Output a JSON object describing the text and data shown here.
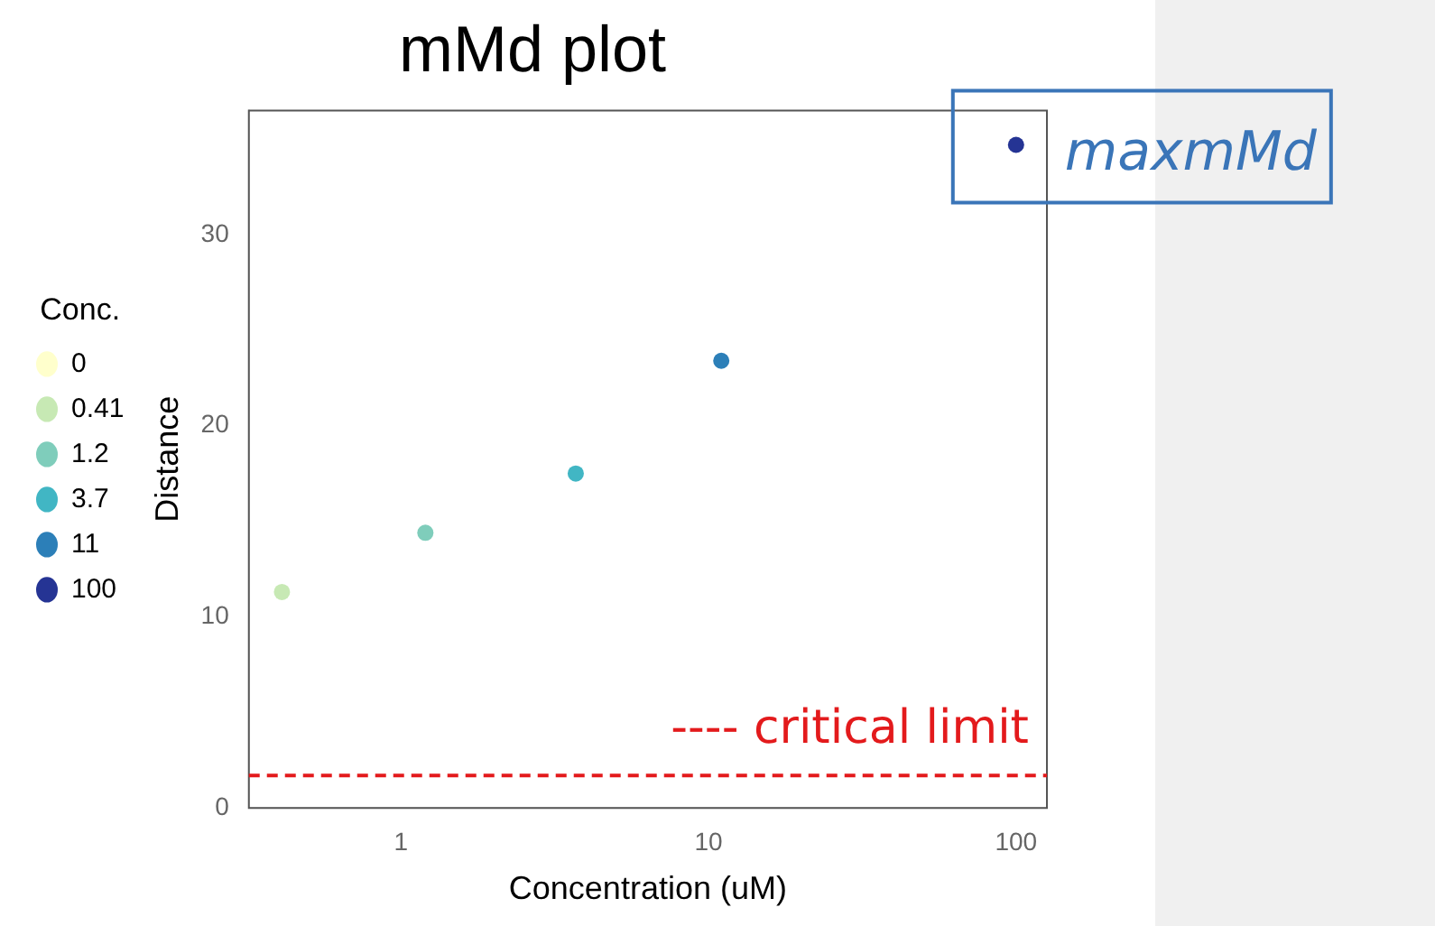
{
  "chart_data": {
    "type": "scatter",
    "title": "mMd plot",
    "xlabel": "Concentration (uM)",
    "ylabel": "Distance",
    "legend_title": "Conc.",
    "log": "x",
    "xlim": [
      0.32,
      126
    ],
    "xticks": [
      1,
      10,
      100
    ],
    "ylim": [
      0,
      36.5
    ],
    "yticks": [
      0,
      10,
      20,
      30
    ],
    "grid": false,
    "legend": "left",
    "marker": "circle",
    "series": [
      {
        "name": "0",
        "color": "#ffffcc"
      },
      {
        "name": "0.41",
        "color": "#c7e9b4",
        "x": [
          0.41
        ],
        "values": [
          11.3
        ]
      },
      {
        "name": "1.2",
        "color": "#7fcdbb",
        "x": [
          1.2
        ],
        "values": [
          14.4
        ]
      },
      {
        "name": "3.7",
        "color": "#41b6c4",
        "x": [
          3.7
        ],
        "values": [
          17.5
        ]
      },
      {
        "name": "11",
        "color": "#2c7fb8",
        "x": [
          11
        ],
        "values": [
          23.4
        ]
      },
      {
        "name": "100",
        "color": "#253494",
        "x": [
          100
        ],
        "values": [
          34.7
        ]
      }
    ],
    "ref_lines": [
      {
        "axis": "y",
        "value": 1.7,
        "label": "---- critical limit",
        "color": "#e31a1c",
        "line_style": "dashed"
      }
    ],
    "annotations": [
      {
        "text": "maxmMd",
        "x": 100,
        "y": 34.7
      }
    ]
  }
}
